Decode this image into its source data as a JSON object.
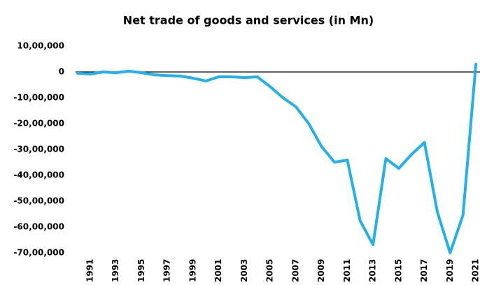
{
  "chart_data": {
    "type": "line",
    "title": "Net trade of goods and services (in Mn)",
    "categories": [
      null,
      "1991",
      null,
      "1993",
      null,
      "1995",
      null,
      "1997",
      null,
      "1999",
      null,
      "2001",
      null,
      "2003",
      null,
      "2005",
      null,
      "2007",
      null,
      "2009",
      null,
      "2011",
      null,
      "2013",
      null,
      "2015",
      null,
      "2017",
      null,
      "2019",
      null,
      "2021"
    ],
    "series": [
      {
        "name": null,
        "color": "#22b1ec",
        "values": [
          -50000,
          -80000,
          0,
          -30000,
          30000,
          -30000,
          -110000,
          -140000,
          -160000,
          -240000,
          -350000,
          -190000,
          -190000,
          -220000,
          -190000,
          -570000,
          -1000000,
          -1350000,
          -2000000,
          -2890000,
          -3490000,
          -3410000,
          -5760000,
          -6680000,
          -3350000,
          -3730000,
          -3190000,
          -2730000,
          -5410000,
          -7000000,
          -5540000,
          300000
        ]
      }
    ],
    "ylim": [
      -7000000,
      1000000
    ],
    "yticks": [
      {
        "value": 1000000,
        "label": "10,00,000"
      },
      0,
      {
        "value": -1000000,
        "label": "-10,00,000"
      },
      {
        "value": -2000000,
        "label": "-20,00,000"
      },
      {
        "value": -3000000,
        "label": "-30,00,000"
      },
      {
        "value": -4000000,
        "label": "-40,00,000"
      },
      {
        "value": -5000000,
        "label": "-50,00,000"
      },
      {
        "value": -6000000,
        "label": "-60,00,000"
      },
      {
        "value": -7000000,
        "label": "-70,00,000"
      }
    ],
    "grid": false
  }
}
